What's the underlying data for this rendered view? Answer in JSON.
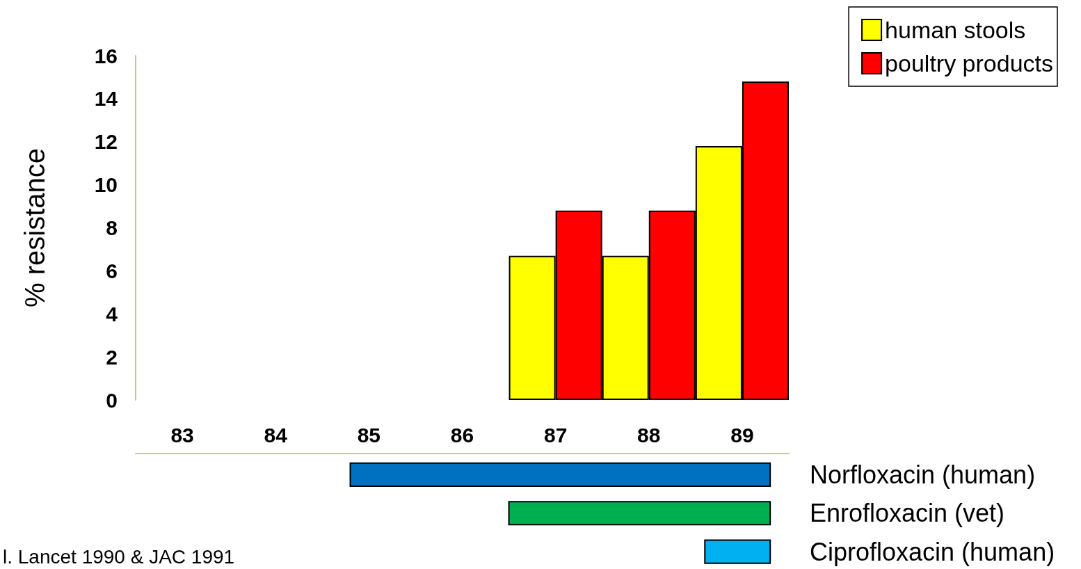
{
  "chart_data": [
    {
      "type": "bar",
      "ylabel": "% resistance",
      "categories": [
        "83",
        "84",
        "85",
        "86",
        "87",
        "88",
        "89"
      ],
      "series": [
        {
          "name": "human stools",
          "color": "#ffff00",
          "values": [
            null,
            null,
            null,
            null,
            6.7,
            6.7,
            11.8
          ]
        },
        {
          "name": "poultry products",
          "color": "#ff0000",
          "values": [
            null,
            null,
            null,
            null,
            8.8,
            8.8,
            14.8
          ]
        }
      ],
      "ylim": [
        0,
        16
      ],
      "yticks": [
        0,
        2,
        4,
        6,
        8,
        10,
        12,
        14,
        16
      ],
      "grid": false,
      "legend": "top right",
      "tick_labels": "y"
    },
    {
      "type": "bar",
      "orientation": "horizontal",
      "categories": [
        "Norfloxacin (human)",
        "Enrofloxacin (vet)",
        "Ciprofloxacin (human)"
      ],
      "base": [
        84.8,
        86.5,
        88.6
      ],
      "values": [
        4.5,
        2.8,
        0.7
      ],
      "colors": [
        "#0070c0",
        "#00b050",
        "#00b0f0"
      ],
      "xlim": [
        82.5,
        89.5
      ],
      "xticks": [
        83,
        84,
        85,
        86,
        87,
        88,
        89
      ],
      "annotations": [
        "l. Lancet 1990 & JAC 1991"
      ]
    }
  ]
}
